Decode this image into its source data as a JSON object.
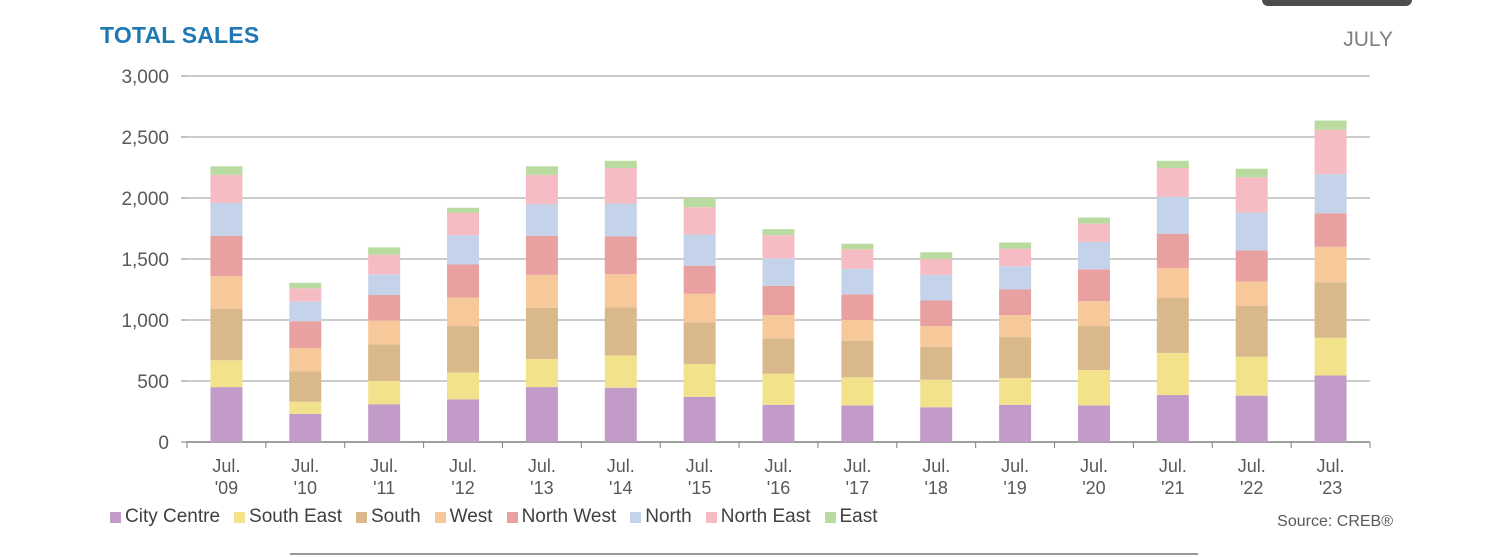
{
  "title": "TOTAL SALES",
  "month": "JULY",
  "source": "Source: CREB®",
  "chart_data": {
    "type": "bar",
    "stacked": true,
    "categories": [
      [
        "Jul.",
        "'09"
      ],
      [
        "Jul.",
        "'10"
      ],
      [
        "Jul.",
        "'11"
      ],
      [
        "Jul.",
        "'12"
      ],
      [
        "Jul.",
        "'13"
      ],
      [
        "Jul.",
        "'14"
      ],
      [
        "Jul.",
        "'15"
      ],
      [
        "Jul.",
        "'16"
      ],
      [
        "Jul.",
        "'17"
      ],
      [
        "Jul.",
        "'18"
      ],
      [
        "Jul.",
        "'19"
      ],
      [
        "Jul.",
        "'20"
      ],
      [
        "Jul.",
        "'21"
      ],
      [
        "Jul.",
        "'22"
      ],
      [
        "Jul.",
        "'23"
      ]
    ],
    "ylim": [
      0,
      3000
    ],
    "yticks": [
      0,
      500,
      1000,
      1500,
      2000,
      2500,
      3000
    ],
    "ytick_labels": [
      "0",
      "500",
      "1,000",
      "1,500",
      "2,000",
      "2,500",
      "3,000"
    ],
    "grid": true,
    "legend_position": "bottom",
    "series": [
      {
        "name": "City Centre",
        "color": "#c39bc9",
        "values": [
          450,
          230,
          310,
          350,
          450,
          445,
          370,
          305,
          300,
          285,
          305,
          300,
          385,
          380,
          545
        ]
      },
      {
        "name": "South East",
        "color": "#f2e28c",
        "values": [
          220,
          100,
          190,
          220,
          230,
          265,
          270,
          255,
          230,
          225,
          220,
          290,
          345,
          320,
          310
        ]
      },
      {
        "name": "South",
        "color": "#d9b88c",
        "values": [
          420,
          250,
          300,
          380,
          420,
          395,
          340,
          290,
          300,
          270,
          335,
          360,
          450,
          415,
          455
        ]
      },
      {
        "name": "West",
        "color": "#f6c89a",
        "values": [
          270,
          190,
          195,
          235,
          270,
          270,
          235,
          190,
          170,
          170,
          180,
          205,
          245,
          200,
          290
        ]
      },
      {
        "name": "North West",
        "color": "#e8a0a0",
        "values": [
          330,
          220,
          210,
          270,
          320,
          310,
          230,
          240,
          210,
          210,
          210,
          260,
          280,
          255,
          275
        ]
      },
      {
        "name": "North",
        "color": "#c5d3ea",
        "values": [
          270,
          160,
          170,
          240,
          260,
          270,
          255,
          225,
          210,
          210,
          190,
          225,
          305,
          310,
          320
        ]
      },
      {
        "name": "North East",
        "color": "#f6bcc4",
        "values": [
          230,
          110,
          160,
          185,
          240,
          290,
          225,
          190,
          160,
          130,
          145,
          150,
          235,
          290,
          365
        ]
      },
      {
        "name": "East",
        "color": "#b9dba0",
        "values": [
          70,
          45,
          60,
          40,
          70,
          60,
          75,
          50,
          45,
          55,
          50,
          50,
          60,
          70,
          75
        ]
      }
    ]
  }
}
